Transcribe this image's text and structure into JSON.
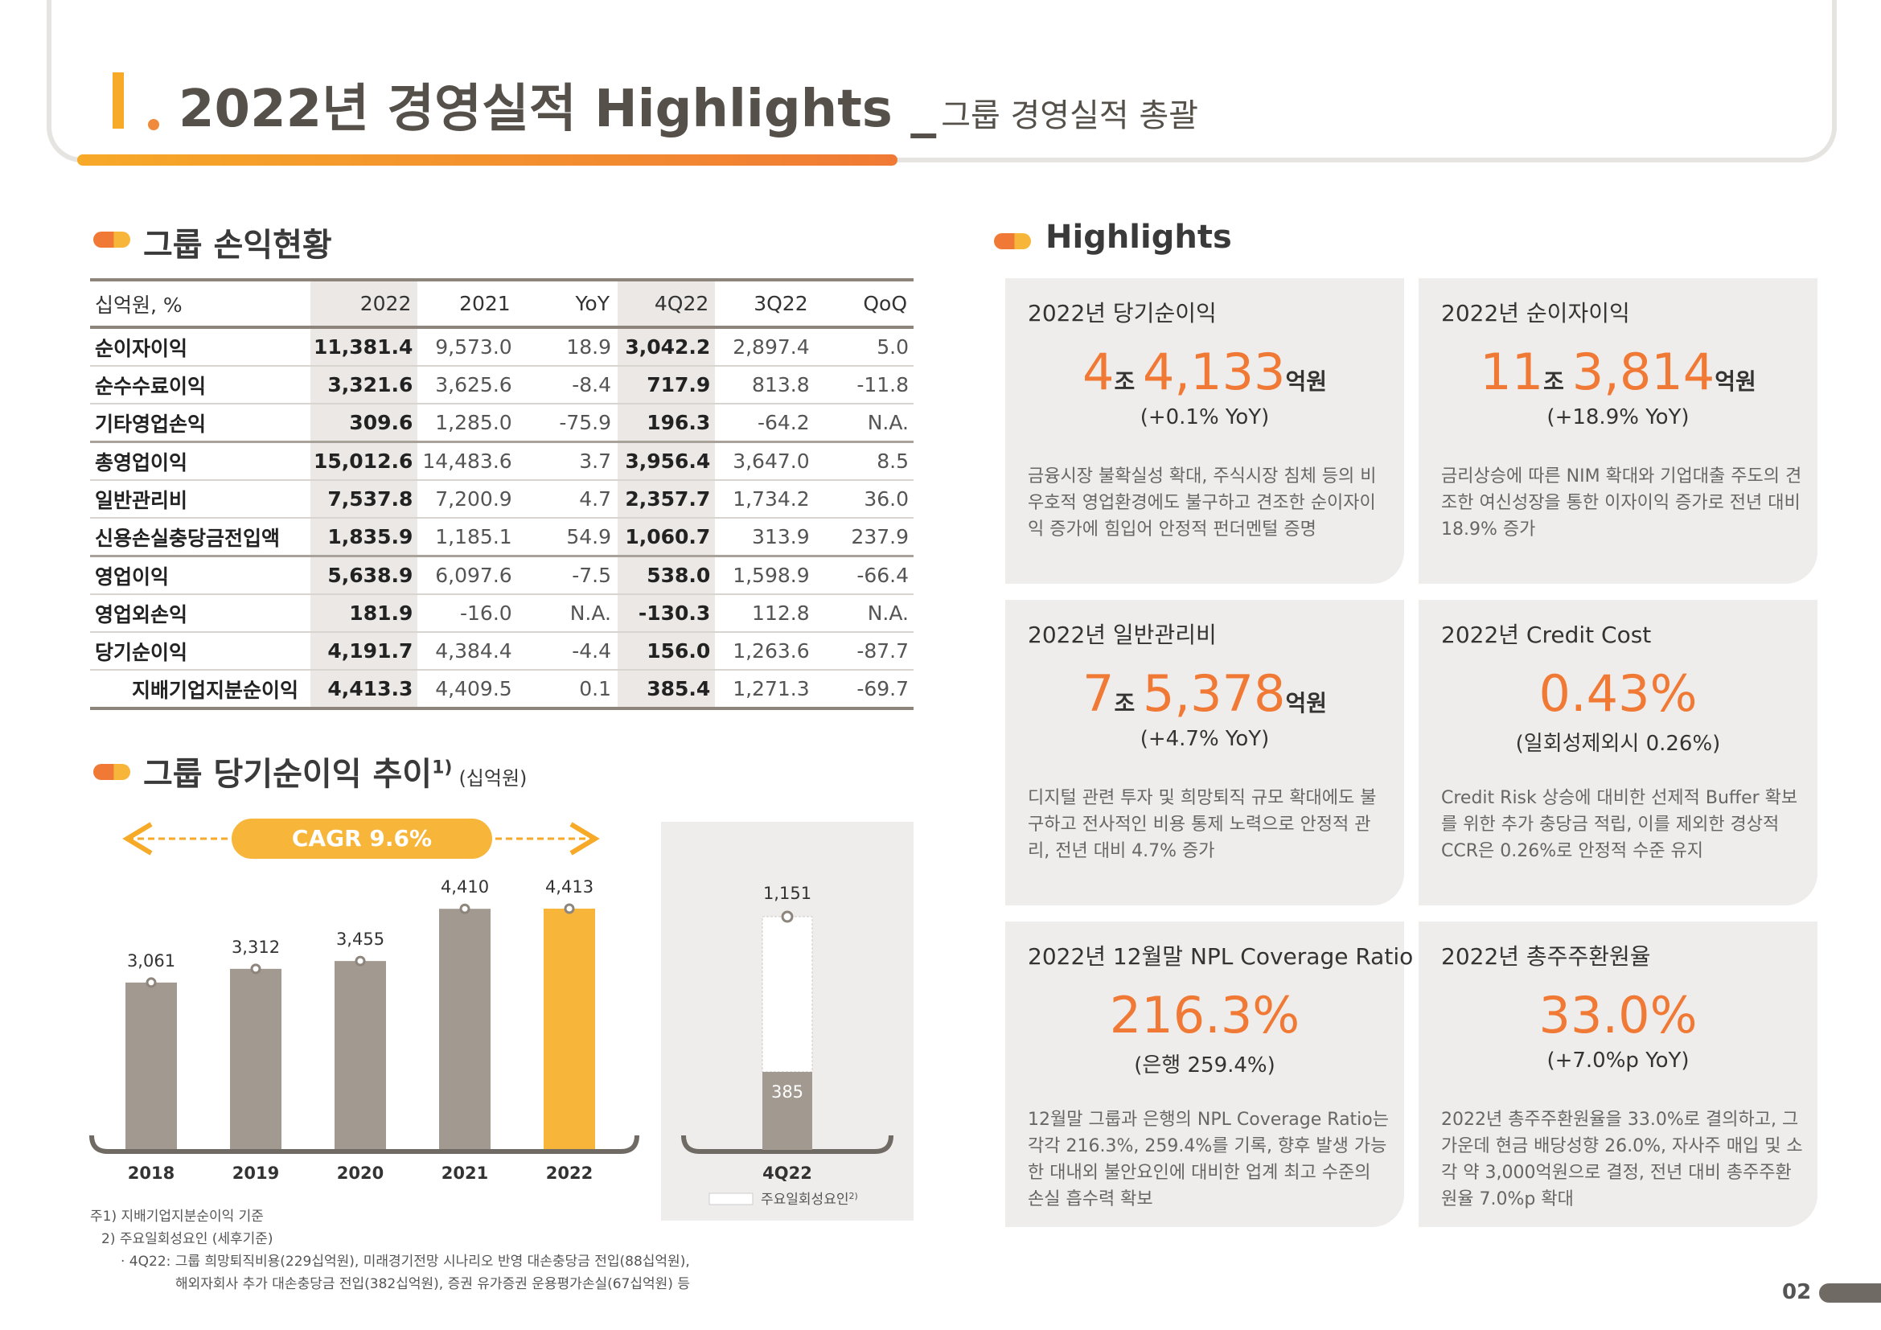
{
  "header": {
    "title": "2022년 경영실적 Highlights",
    "underscore": "_",
    "subtitle": "그룹 경영실적 총괄"
  },
  "pl_section": {
    "title": "그룹 손익현황",
    "columns": [
      "십억원, %",
      "2022",
      "2021",
      "YoY",
      "4Q22",
      "3Q22",
      "QoQ"
    ],
    "rows": [
      {
        "label": "순이자이익",
        "v": [
          "11,381.4",
          "9,573.0",
          "18.9",
          "3,042.2",
          "2,897.4",
          "5.0"
        ]
      },
      {
        "label": "순수수료이익",
        "v": [
          "3,321.6",
          "3,625.6",
          "-8.4",
          "717.9",
          "813.8",
          "-11.8"
        ]
      },
      {
        "label": "기타영업손익",
        "v": [
          "309.6",
          "1,285.0",
          "-75.9",
          "196.3",
          "-64.2",
          "N.A."
        ]
      },
      {
        "label": "총영업이익",
        "v": [
          "15,012.6",
          "14,483.6",
          "3.7",
          "3,956.4",
          "3,647.0",
          "8.5"
        ]
      },
      {
        "label": "일반관리비",
        "v": [
          "7,537.8",
          "7,200.9",
          "4.7",
          "2,357.7",
          "1,734.2",
          "36.0"
        ]
      },
      {
        "label": "신용손실충당금전입액",
        "v": [
          "1,835.9",
          "1,185.1",
          "54.9",
          "1,060.7",
          "313.9",
          "237.9"
        ]
      },
      {
        "label": "영업이익",
        "v": [
          "5,638.9",
          "6,097.6",
          "-7.5",
          "538.0",
          "1,598.9",
          "-66.4"
        ]
      },
      {
        "label": "영업외손익",
        "v": [
          "181.9",
          "-16.0",
          "N.A.",
          "-130.3",
          "112.8",
          "N.A."
        ]
      },
      {
        "label": "당기순이익",
        "v": [
          "4,191.7",
          "4,384.4",
          "-4.4",
          "156.0",
          "1,263.6",
          "-87.7"
        ]
      },
      {
        "label": "지배기업지분순이익",
        "v": [
          "4,413.3",
          "4,409.5",
          "0.1",
          "385.4",
          "1,271.3",
          "-69.7"
        ]
      }
    ]
  },
  "trend_section": {
    "title": "그룹 당기순이익 추이",
    "sup": "1)",
    "unit": "(십억원)",
    "cagr": "CAGR 9.6%"
  },
  "chart_data": {
    "type": "bar",
    "categories": [
      "2018",
      "2019",
      "2020",
      "2021",
      "2022"
    ],
    "values": [
      3061,
      3312,
      3455,
      4410,
      4413
    ],
    "value_labels": [
      "3,061",
      "3,312",
      "3,455",
      "4,410",
      "4,413"
    ],
    "colors": [
      "#a29990",
      "#a29990",
      "#a29990",
      "#a29990",
      "#f7b53a"
    ],
    "side": {
      "category": "4Q22",
      "total_label": "1,151",
      "base_label": "385",
      "total": 1151,
      "base": 385,
      "legend": "주요일회성요인",
      "legend_sup": "2)"
    }
  },
  "footnotes": [
    "주1) 지배기업지분순이익 기준",
    "2) 주요일회성요인 (세후기준)",
    "· 4Q22: 그룹 희망퇴직비용(229십억원), 미래경기전망 시나리오 반영 대손충당금 전입(88십억원),",
    "해외자회사 추가 대손충당금 전입(382십억원), 증권 유가증권 운용평가손실(67십억원) 등"
  ],
  "highlights_section": {
    "title": "Highlights"
  },
  "cards": [
    {
      "title": "2022년 당기순이익",
      "n1": "4",
      "u1": "조 ",
      "n2": "4,133",
      "u2": "억원",
      "sub": "(+0.1% YoY)",
      "desc": "금융시장 불확실성 확대, 주식시장 침체 등의 비우호적 영업환경에도 불구하고 견조한 순이자이익 증가에 힘입어 안정적 펀더멘털 증명"
    },
    {
      "title": "2022년 순이자이익",
      "n1": "11",
      "u1": "조 ",
      "n2": "3,814",
      "u2": "억원",
      "sub": "(+18.9% YoY)",
      "desc": "금리상승에 따른 NIM 확대와 기업대출 주도의 견조한 여신성장을 통한 이자이익 증가로 전년 대비 18.9% 증가"
    },
    {
      "title": "2022년 일반관리비",
      "n1": "7",
      "u1": "조 ",
      "n2": "5,378",
      "u2": "억원",
      "sub": "(+4.7% YoY)",
      "desc": "디지털 관련 투자 및 희망퇴직 규모 확대에도 불구하고 전사적인 비용 통제 노력으로 안정적 관리, 전년 대비 4.7% 증가"
    },
    {
      "title": "2022년 Credit Cost",
      "n1": "0.43%",
      "u1": "",
      "n2": "",
      "u2": "",
      "sub": "(일회성제외시 0.26%)",
      "desc": "Credit Risk 상승에 대비한 선제적 Buffer 확보를 위한 추가 충당금 적립, 이를 제외한 경상적 CCR은 0.26%로 안정적 수준 유지"
    },
    {
      "title": "2022년 12월말 NPL Coverage Ratio",
      "n1": "216.3%",
      "u1": "",
      "n2": "",
      "u2": "",
      "sub": "(은행 259.4%)",
      "desc": "12월말 그룹과 은행의 NPL Coverage Ratio는 각각 216.3%, 259.4%를 기록, 향후 발생 가능한 대내외 불안요인에 대비한 업계 최고 수준의 손실 흡수력 확보"
    },
    {
      "title": "2022년 총주주환원율",
      "n1": "33.0%",
      "u1": "",
      "n2": "",
      "u2": "",
      "sub": "(+7.0%p YoY)",
      "desc": "2022년 총주주환원율을 33.0%로 결의하고, 그 가운데 현금 배당성향 26.0%, 자사주 매입 및 소각 약 3,000억원으로 결정, 전년 대비 총주주환원율 7.0%p 확대"
    }
  ],
  "page_number": "02"
}
